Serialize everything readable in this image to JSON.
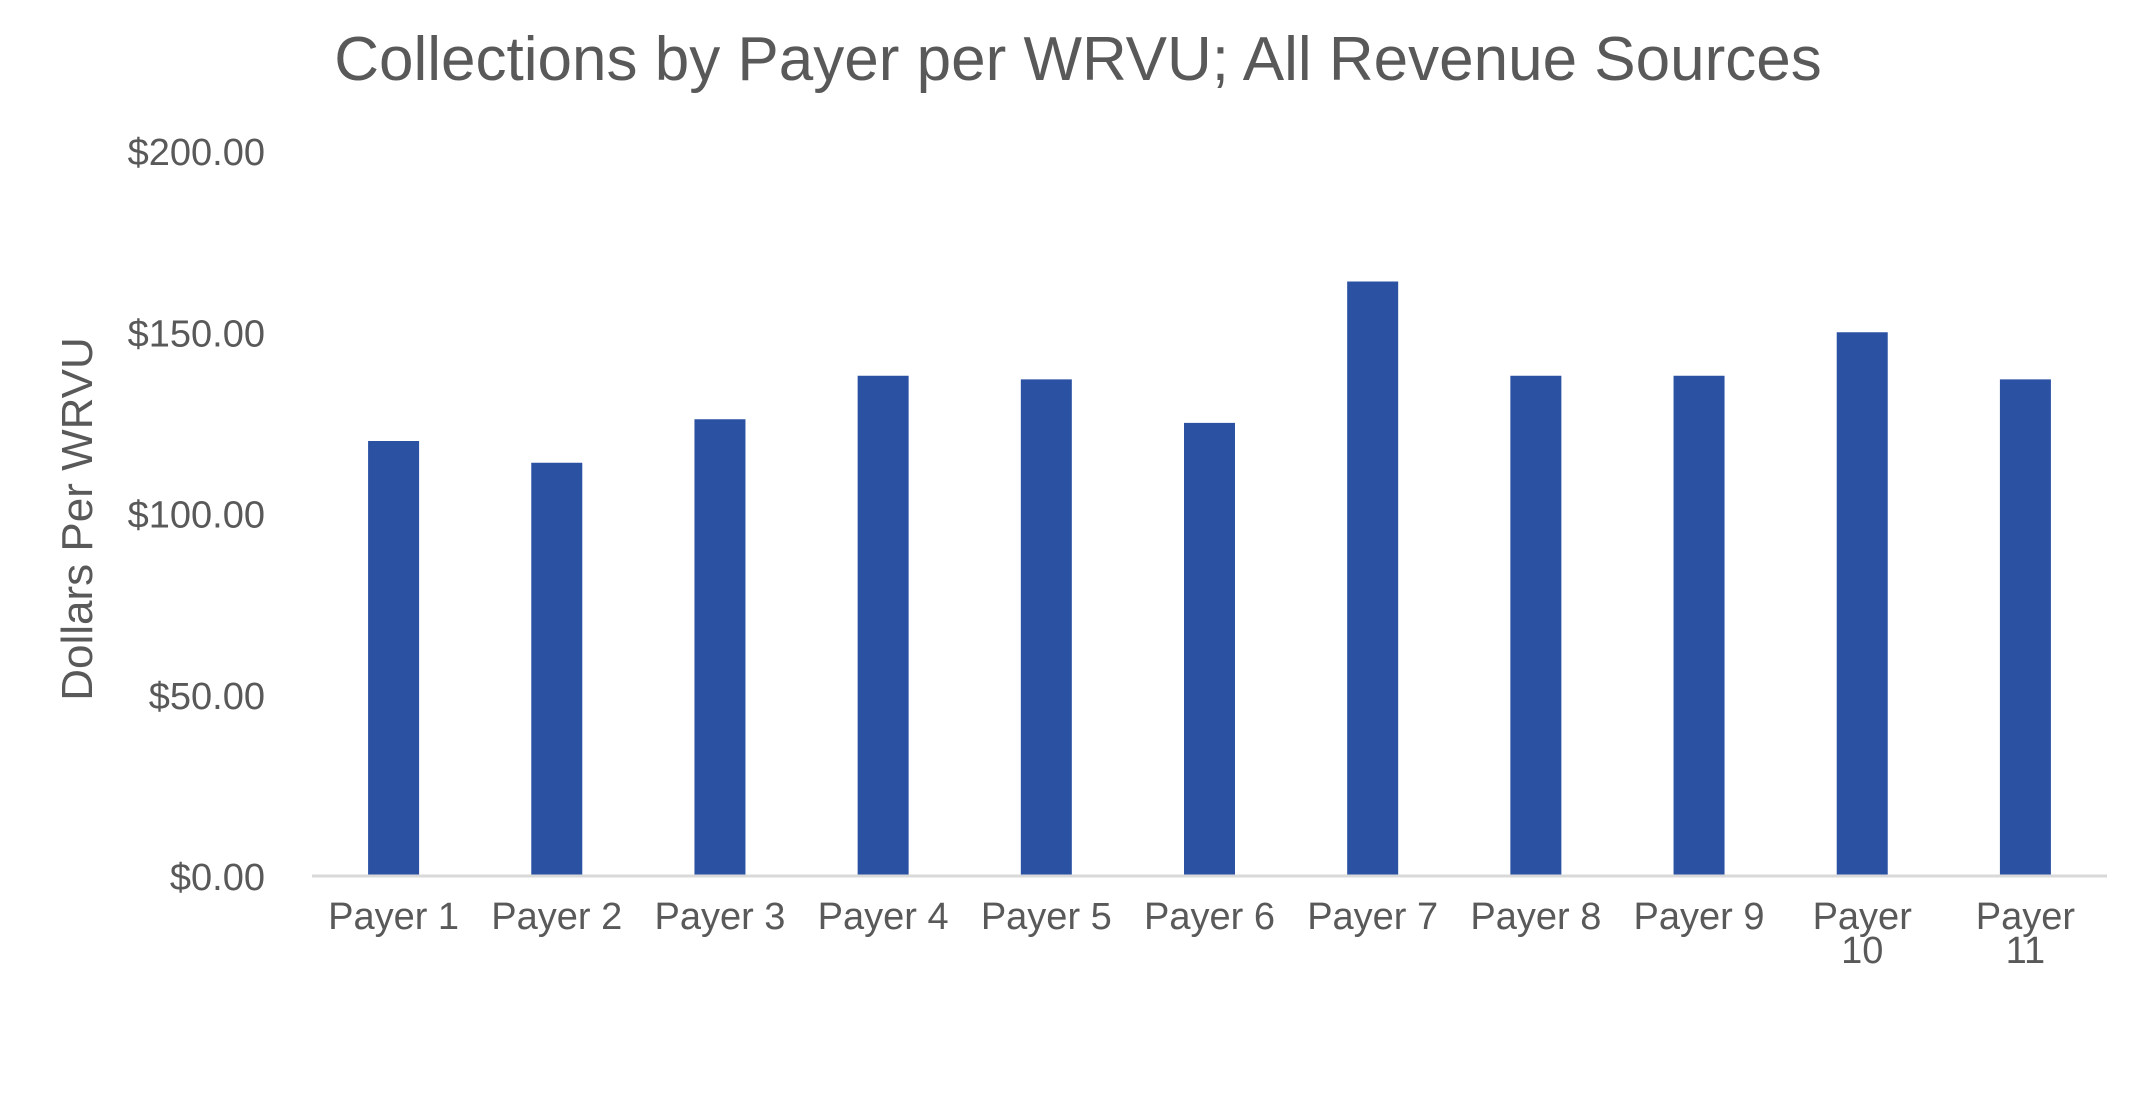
{
  "chart_data": {
    "type": "bar",
    "title": "Collections by Payer per WRVU; All Revenue Sources",
    "xlabel": "",
    "ylabel": "Dollars Per WRVU",
    "categories": [
      "Payer 1",
      "Payer 2",
      "Payer 3",
      "Payer 4",
      "Payer 5",
      "Payer 6",
      "Payer 7",
      "Payer 8",
      "Payer 9",
      "Payer 10",
      "Payer 11"
    ],
    "values": [
      120,
      114,
      126,
      138,
      137,
      125,
      164,
      138,
      138,
      150,
      137
    ],
    "ylim": [
      0,
      200
    ],
    "yticks": [
      0,
      50,
      100,
      150,
      200
    ],
    "ytick_labels": [
      "$0.00",
      "$50.00",
      "$100.00",
      "$150.00",
      "$200.00"
    ],
    "grid": false,
    "legend": "none",
    "bar_color": "#2b51a3",
    "text_color": "#595959",
    "axis_color": "#d9d9d9"
  }
}
